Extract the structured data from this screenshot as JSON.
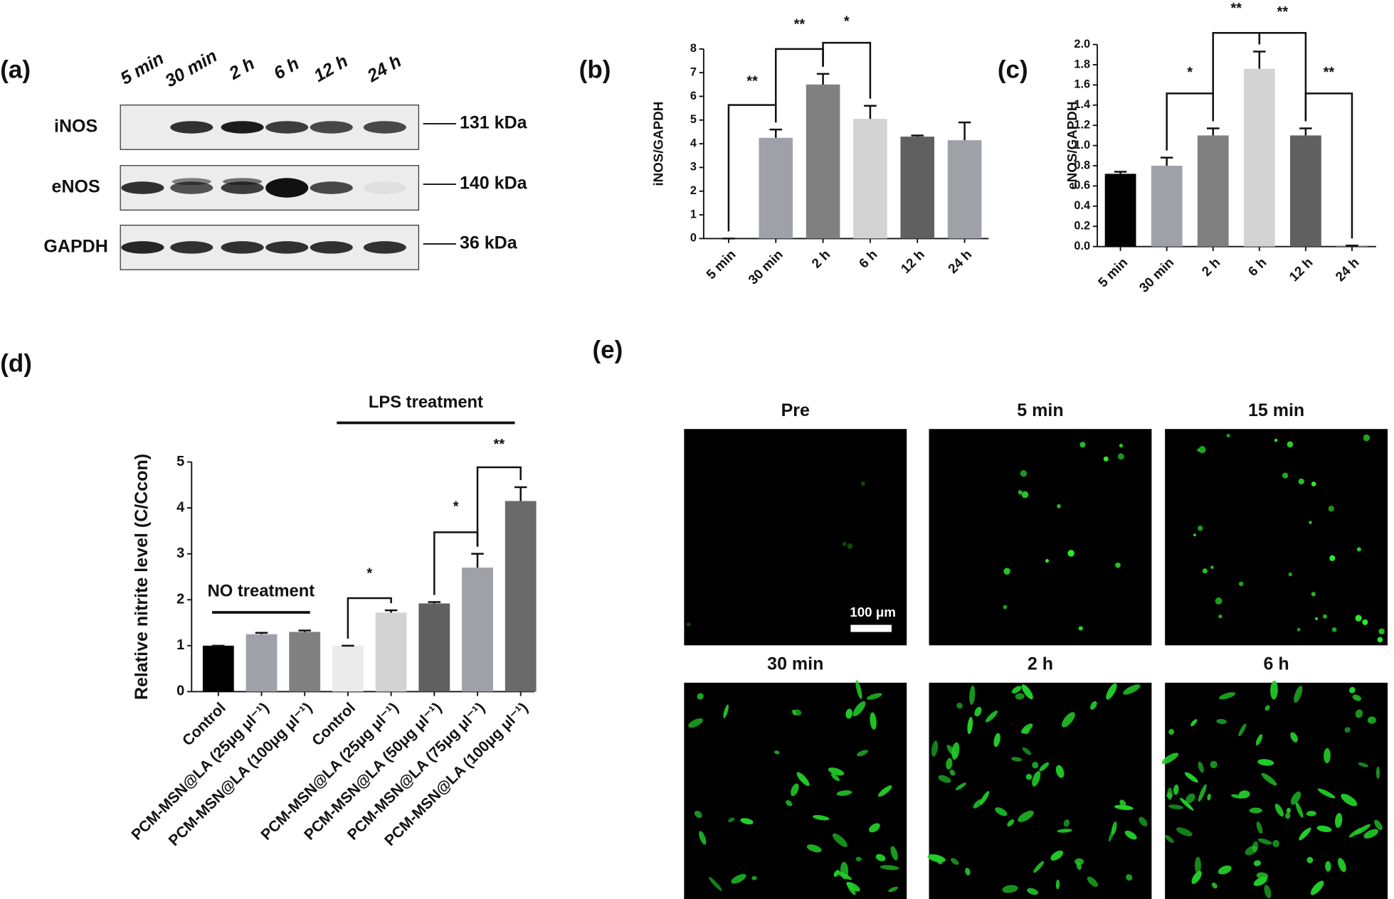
{
  "panel_labels": [
    "(a)",
    "(b)",
    "(c)",
    "(d)",
    "(e)"
  ],
  "blot": {
    "lanes": [
      "5 min",
      "30 min",
      "2 h",
      "6 h",
      "12 h",
      "24 h"
    ],
    "rows": [
      {
        "name": "iNOS",
        "size": "131 kDa"
      },
      {
        "name": "eNOS",
        "size": "140 kDa"
      },
      {
        "name": "GAPDH",
        "size": "36 kDa"
      }
    ]
  },
  "chart_data": [
    {
      "type": "bar",
      "ylabel": "iNOS/GAPDH",
      "categories": [
        "5 min",
        "30 min",
        "2 h",
        "6 h",
        "12 h",
        "24 h"
      ],
      "values": [
        0,
        4.25,
        6.5,
        5.05,
        4.3,
        4.15
      ],
      "errors": [
        0,
        0.35,
        0.45,
        0.55,
        0.05,
        0.75
      ],
      "colors": [
        "#a0a0a8",
        "#a0a0a8",
        "#808080",
        "#d3d3d3",
        "#606060",
        "#a0a0a8"
      ],
      "ylim": [
        0,
        8
      ],
      "yticks": [
        0,
        1,
        2,
        3,
        4,
        5,
        6,
        7,
        8
      ],
      "annotations": [
        "**",
        "**",
        "*"
      ]
    },
    {
      "type": "bar",
      "ylabel": "eNOS/GAPDH",
      "categories": [
        "5 min",
        "30 min",
        "2 h",
        "6 h",
        "12 h",
        "24 h"
      ],
      "values": [
        0.72,
        0.8,
        1.1,
        1.76,
        1.1,
        0.01
      ],
      "errors": [
        0.02,
        0.08,
        0.07,
        0.17,
        0.07,
        0
      ],
      "colors": [
        "#000000",
        "#a0a0a8",
        "#808080",
        "#d3d3d3",
        "#606060",
        "#a0a0a8"
      ],
      "ylim": [
        0,
        2
      ],
      "yticks": [
        {
          "value": 0,
          "label": "0.0"
        },
        {
          "value": 0.2,
          "label": "0.2"
        },
        {
          "value": 0.4,
          "label": "0.4"
        },
        {
          "value": 0.6,
          "label": "0.6"
        },
        {
          "value": 0.8,
          "label": "0.8"
        },
        {
          "value": 1,
          "label": "1.0"
        },
        {
          "value": 1.2,
          "label": "1.2"
        },
        {
          "value": 1.4,
          "label": "1.4"
        },
        {
          "value": 1.6,
          "label": "1.6"
        },
        {
          "value": 1.8,
          "label": "1.8"
        },
        {
          "value": 2,
          "label": "2.0"
        }
      ],
      "annotations": [
        "*",
        "**",
        "**",
        "**"
      ]
    },
    {
      "type": "bar",
      "ylabel": "Relative nitrite level (C/Ccon)",
      "categories": [
        "Control",
        "PCM-MSN@LA (25μg μl⁻¹)",
        "PCM-MSN@LA (100μg μl⁻¹)",
        "Control",
        "PCM-MSN@LA (25μg μl⁻¹)",
        "PCM-MSN@LA (50μg μl⁻¹)",
        "PCM-MSN@LA (75μg μl⁻¹)",
        "PCM-MSN@LA (100μg μl⁻¹)"
      ],
      "values": [
        1,
        1.25,
        1.3,
        1,
        1.72,
        1.92,
        2.7,
        4.15
      ],
      "errors": [
        0,
        0.03,
        0.03,
        0,
        0.05,
        0.03,
        0.3,
        0.3
      ],
      "colors": [
        "#000000",
        "#a0a0a8",
        "#808080",
        "#ebebeb",
        "#d3d3d3",
        "#606060",
        "#a0a0a8",
        "#6a6a6a"
      ],
      "ylim": [
        0,
        5
      ],
      "yticks": [
        0,
        1,
        2,
        3,
        4,
        5
      ],
      "annotations": [
        "*",
        "*",
        "**"
      ],
      "group_labels": [
        "NO treatment",
        "LPS treatment"
      ]
    }
  ],
  "images": {
    "titles": [
      "Pre",
      "5 min",
      "15 min",
      "30 min",
      "2 h",
      "6 h"
    ],
    "scale_bar": "100 μm"
  }
}
